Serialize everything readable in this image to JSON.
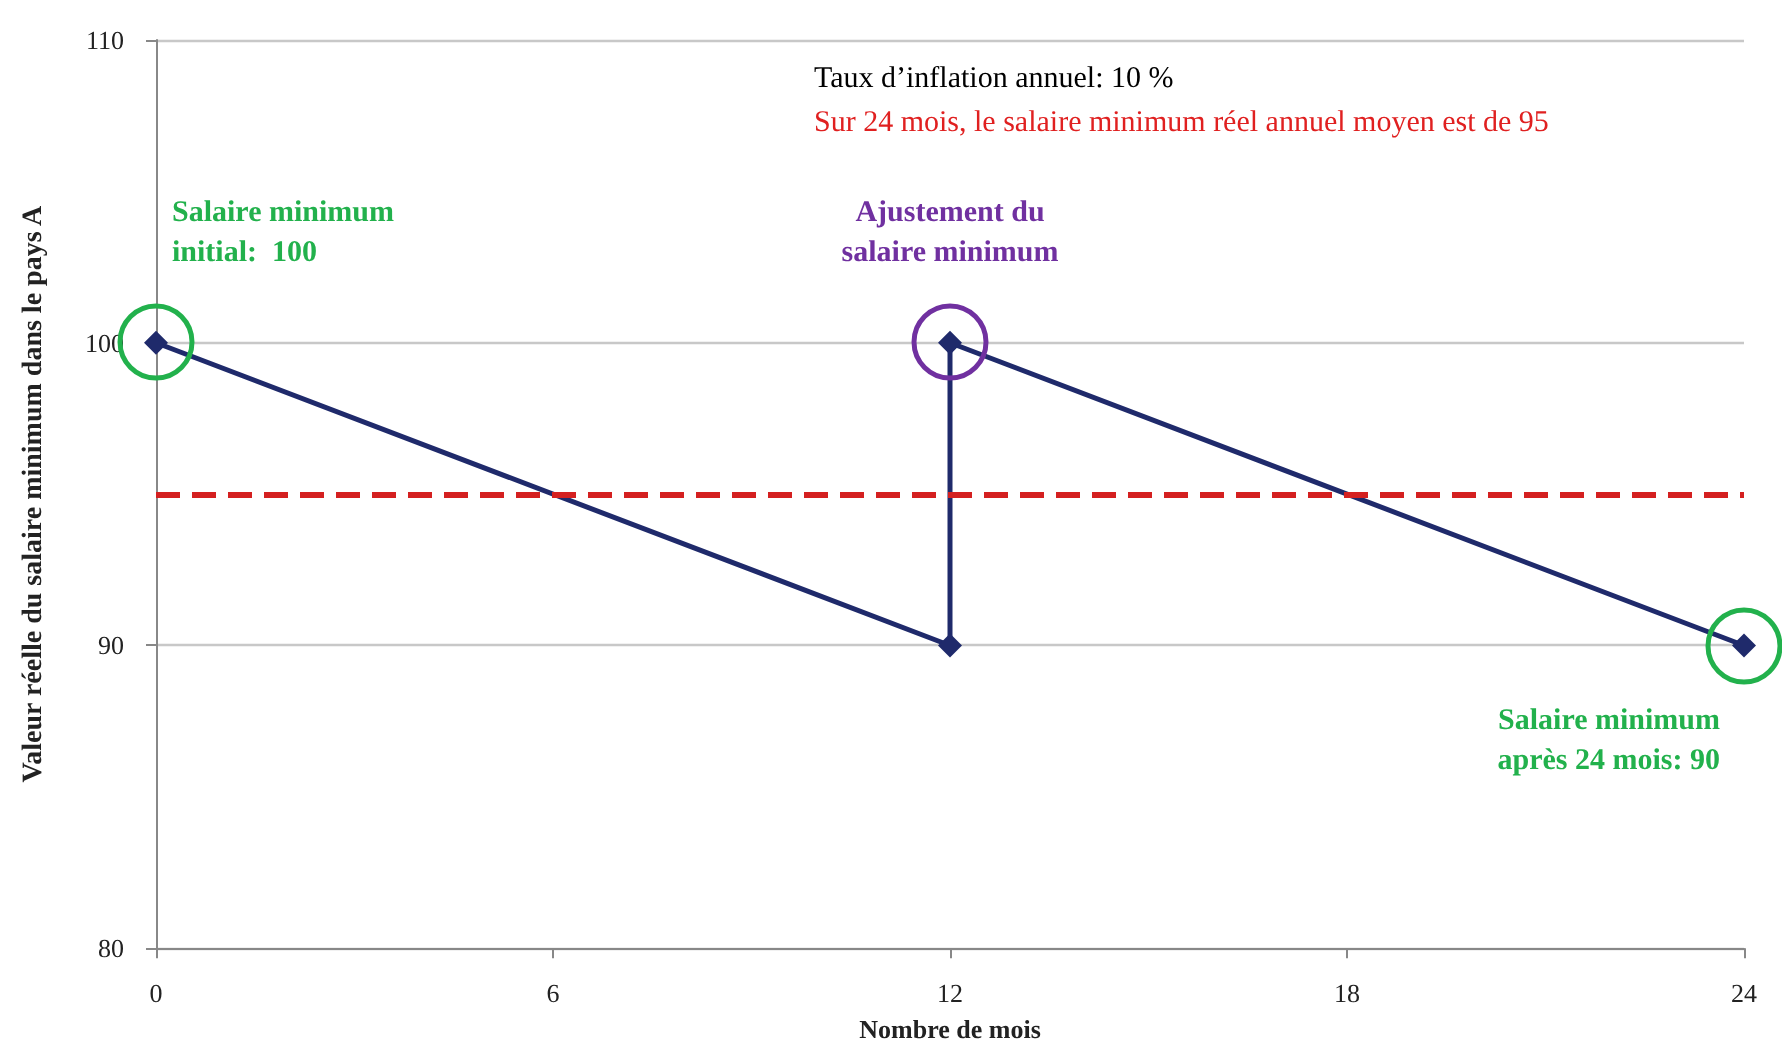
{
  "chart_data": {
    "type": "line",
    "xlabel": "Nombre de mois",
    "ylabel": "Valeur réelle du salaire minimum dans le pays A",
    "x": [
      0,
      12,
      12,
      24
    ],
    "series": [
      {
        "color": "#1f2a6b",
        "values": [
          100,
          90,
          100,
          90
        ]
      }
    ],
    "xlim": [
      0,
      24
    ],
    "xticks": [
      0,
      6,
      12,
      18,
      24
    ],
    "ylim": [
      80,
      110
    ],
    "yticks": [
      80,
      90,
      100,
      110
    ],
    "grid": "y",
    "marker": "diamond",
    "line_style": "solid",
    "ref_lines": [
      {
        "axis": "y",
        "value": 95,
        "color": "#d42020",
        "line_style": "dashed"
      }
    ],
    "annotations": [
      "Taux d’inflation annuel: 10 %",
      "Sur 24 mois, le salaire minimum réel annuel moyen est de 95",
      {
        "text": "Salaire minimum\ninitial:  100",
        "x": 0,
        "y": 100
      },
      {
        "text": "Ajustement du\nsalaire minimum",
        "x": 12,
        "y": 100
      },
      {
        "text": "Salaire minimum\naprès 24 mois: 90",
        "x": 24,
        "y": 90
      }
    ]
  }
}
